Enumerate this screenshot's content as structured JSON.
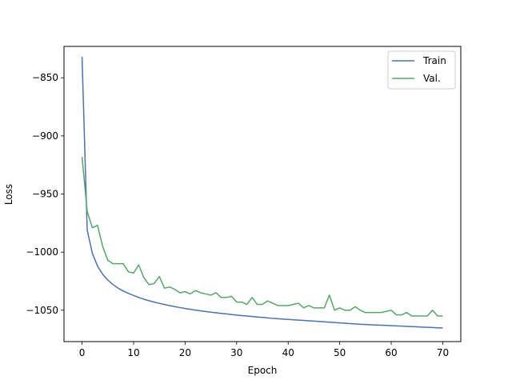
{
  "chart_data": {
    "type": "line",
    "title": "",
    "xlabel": "Epoch",
    "ylabel": "Loss",
    "xlim": [
      -3.5,
      73.5
    ],
    "ylim": [
      -1077,
      -823
    ],
    "xticks": [
      0,
      10,
      20,
      30,
      40,
      50,
      60,
      70
    ],
    "yticks": [
      -850,
      -900,
      -950,
      -1000,
      -1050
    ],
    "xtick_labels": [
      "0",
      "10",
      "20",
      "30",
      "40",
      "50",
      "60",
      "70"
    ],
    "ytick_labels": [
      "−850",
      "−900",
      "−950",
      "−1000",
      "−1050"
    ],
    "grid": false,
    "legend_position": "top-right",
    "x": [
      0,
      1,
      2,
      3,
      4,
      5,
      6,
      7,
      8,
      9,
      10,
      11,
      12,
      13,
      14,
      15,
      16,
      17,
      18,
      19,
      20,
      21,
      22,
      23,
      24,
      25,
      26,
      27,
      28,
      29,
      30,
      31,
      32,
      33,
      34,
      35,
      36,
      37,
      38,
      39,
      40,
      41,
      42,
      43,
      44,
      45,
      46,
      47,
      48,
      49,
      50,
      51,
      52,
      53,
      54,
      55,
      56,
      57,
      58,
      59,
      60,
      61,
      62,
      63,
      64,
      65,
      66,
      67,
      68,
      69,
      70
    ],
    "series": [
      {
        "name": "Train",
        "color": "#4c72b0",
        "values": [
          -832,
          -981,
          -1001,
          -1012,
          -1019,
          -1024,
          -1028,
          -1031,
          -1033.5,
          -1035.5,
          -1037.3,
          -1039,
          -1040.5,
          -1041.8,
          -1043,
          -1044.1,
          -1045.1,
          -1046,
          -1046.9,
          -1047.7,
          -1048.5,
          -1049.2,
          -1049.9,
          -1050.5,
          -1051.1,
          -1051.7,
          -1052.2,
          -1052.7,
          -1053.2,
          -1053.7,
          -1054.2,
          -1054.6,
          -1055,
          -1055.4,
          -1055.8,
          -1056.2,
          -1056.6,
          -1057,
          -1057.3,
          -1057.6,
          -1057.9,
          -1058.2,
          -1058.5,
          -1058.8,
          -1059.1,
          -1059.4,
          -1059.7,
          -1060,
          -1060.3,
          -1060.6,
          -1060.9,
          -1061.2,
          -1061.5,
          -1061.8,
          -1062.1,
          -1062.3,
          -1062.5,
          -1062.7,
          -1062.9,
          -1063.1,
          -1063.3,
          -1063.5,
          -1063.7,
          -1063.9,
          -1064.1,
          -1064.3,
          -1064.5,
          -1064.7,
          -1064.9,
          -1065.1,
          -1065.3
        ]
      },
      {
        "name": "Val.",
        "color": "#55a868",
        "values": [
          -918,
          -965,
          -979,
          -977,
          -995,
          -1007,
          -1010,
          -1010,
          -1010,
          -1017,
          -1018,
          -1011,
          -1022,
          -1028,
          -1027,
          -1021,
          -1031,
          -1030,
          -1032,
          -1035,
          -1034,
          -1036,
          -1033,
          -1035,
          -1036,
          -1037,
          -1035,
          -1039,
          -1039,
          -1038,
          -1043,
          -1043,
          -1045,
          -1039,
          -1045,
          -1045,
          -1042,
          -1044,
          -1046,
          -1046,
          -1046,
          -1045,
          -1044,
          -1048,
          -1046,
          -1048,
          -1048,
          -1048,
          -1037,
          -1050,
          -1048,
          -1050,
          -1050,
          -1047,
          -1050,
          -1052,
          -1052,
          -1052,
          -1052,
          -1051,
          -1050,
          -1054,
          -1054,
          -1052,
          -1055,
          -1055,
          -1055,
          -1055,
          -1050,
          -1055,
          -1055
        ]
      }
    ]
  }
}
